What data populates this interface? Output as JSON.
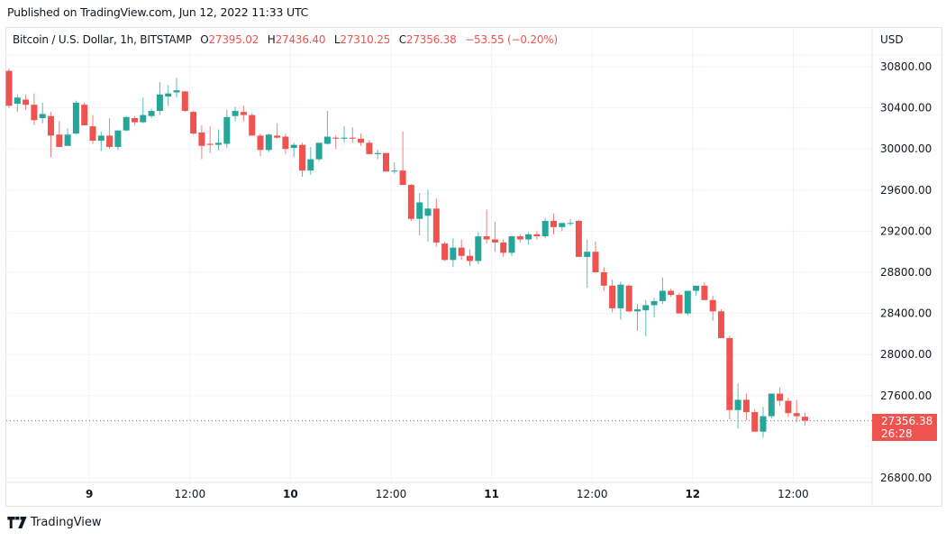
{
  "published": "Published on TradingView.com, Jun 12, 2022 11:33 UTC",
  "legend": {
    "symbol": "Bitcoin / U.S. Dollar, 1h, BITSTAMP",
    "open_key": "O",
    "open": "27395.02",
    "high_key": "H",
    "high": "27436.40",
    "low_key": "L",
    "low": "27310.25",
    "close_key": "C",
    "close": "27356.38",
    "change": "−53.55 (−0.20%)"
  },
  "axis": {
    "currency": "USD"
  },
  "last_price": {
    "value": "27356.38",
    "countdown": "26:28"
  },
  "footer": {
    "brand": "TradingView",
    "logo_icon": "tradingview-logo-icon"
  },
  "colors": {
    "up": "#26a69a",
    "down": "#ef5350",
    "grid": "#f0f3fa",
    "text": "#131722"
  },
  "chart_data": {
    "type": "candlestick",
    "title": "Bitcoin / U.S. Dollar, 1h, BITSTAMP",
    "xlabel": "",
    "ylabel": "USD",
    "ylim": [
      26750,
      30850
    ],
    "grid": true,
    "legend_position": "top-left",
    "y_ticks": [
      30800,
      30400,
      30000,
      29600,
      29200,
      28800,
      28400,
      28000,
      27600,
      26800
    ],
    "y_tick_labels": [
      "30800.00",
      "30400.00",
      "30000.00",
      "29600.00",
      "29200.00",
      "28800.00",
      "28400.00",
      "28000.00",
      "27600.00",
      "26800.00"
    ],
    "x_ticks": [
      {
        "label": "9",
        "index": 9.7,
        "bold": true
      },
      {
        "label": "12:00",
        "index": 21.7,
        "bold": false
      },
      {
        "label": "10",
        "index": 33.7,
        "bold": true
      },
      {
        "label": "12:00",
        "index": 45.7,
        "bold": false
      },
      {
        "label": "11",
        "index": 57.7,
        "bold": true
      },
      {
        "label": "12:00",
        "index": 69.7,
        "bold": false
      },
      {
        "label": "12",
        "index": 81.7,
        "bold": true
      },
      {
        "label": "12:00",
        "index": 93.7,
        "bold": false
      }
    ],
    "current_price": 27356.38,
    "candles": [
      [
        30760,
        30780,
        30400,
        30420
      ],
      [
        30440,
        30530,
        30360,
        30500
      ],
      [
        30480,
        30530,
        30380,
        30430
      ],
      [
        30430,
        30540,
        30230,
        30280
      ],
      [
        30300,
        30450,
        30250,
        30340
      ],
      [
        30320,
        30360,
        29920,
        30130
      ],
      [
        30140,
        30270,
        30020,
        30020
      ],
      [
        30030,
        30200,
        30040,
        30140
      ],
      [
        30150,
        30470,
        30140,
        30450
      ],
      [
        30430,
        30450,
        30230,
        30230
      ],
      [
        30220,
        30330,
        30050,
        30080
      ],
      [
        30080,
        30170,
        29980,
        30130
      ],
      [
        30130,
        30300,
        30000,
        30020
      ],
      [
        30020,
        30180,
        29990,
        30180
      ],
      [
        30180,
        30320,
        30170,
        30310
      ],
      [
        30300,
        30320,
        30230,
        30260
      ],
      [
        30260,
        30500,
        30250,
        30330
      ],
      [
        30320,
        30390,
        30300,
        30370
      ],
      [
        30370,
        30650,
        30330,
        30530
      ],
      [
        30510,
        30620,
        30420,
        30540
      ],
      [
        30550,
        30690,
        30500,
        30570
      ],
      [
        30560,
        30560,
        30360,
        30370
      ],
      [
        30360,
        30370,
        30140,
        30150
      ],
      [
        30160,
        30230,
        29900,
        30030
      ],
      [
        30050,
        30220,
        29960,
        30040
      ],
      [
        30040,
        30190,
        29990,
        30060
      ],
      [
        30050,
        30380,
        30010,
        30310
      ],
      [
        30320,
        30410,
        30270,
        30370
      ],
      [
        30360,
        30420,
        30270,
        30330
      ],
      [
        30330,
        30350,
        30130,
        30130
      ],
      [
        30130,
        30150,
        29930,
        29990
      ],
      [
        29990,
        30150,
        29970,
        30140
      ],
      [
        30130,
        30250,
        30100,
        30110
      ],
      [
        30120,
        30150,
        29950,
        30000
      ],
      [
        30010,
        30060,
        29920,
        30040
      ],
      [
        30040,
        30060,
        29730,
        29790
      ],
      [
        29790,
        30020,
        29750,
        29900
      ],
      [
        29900,
        30010,
        29880,
        30060
      ],
      [
        30050,
        30370,
        30040,
        30120
      ],
      [
        30110,
        30130,
        30000,
        30100
      ],
      [
        30100,
        30220,
        30060,
        30110
      ],
      [
        30110,
        30210,
        30060,
        30100
      ],
      [
        30100,
        30150,
        30030,
        30060
      ],
      [
        30060,
        30090,
        29980,
        29950
      ],
      [
        29950,
        29990,
        29900,
        29960
      ],
      [
        29960,
        29960,
        29790,
        29780
      ],
      [
        29780,
        29870,
        29760,
        29790
      ],
      [
        29790,
        30170,
        29720,
        29650
      ],
      [
        29650,
        29660,
        29300,
        29320
      ],
      [
        29320,
        29570,
        29160,
        29480
      ],
      [
        29350,
        29600,
        29100,
        29420
      ],
      [
        29420,
        29520,
        29050,
        29090
      ],
      [
        29080,
        29100,
        28910,
        28920
      ],
      [
        28920,
        29130,
        28850,
        29040
      ],
      [
        29040,
        29120,
        28920,
        28960
      ],
      [
        28960,
        29020,
        28860,
        28910
      ],
      [
        28910,
        29190,
        28880,
        29150
      ],
      [
        29150,
        29410,
        29080,
        29120
      ],
      [
        29120,
        29290,
        29000,
        29090
      ],
      [
        29090,
        29120,
        28950,
        28990
      ],
      [
        28990,
        29160,
        28960,
        29150
      ],
      [
        29150,
        29170,
        29090,
        29120
      ],
      [
        29120,
        29190,
        29070,
        29170
      ],
      [
        29170,
        29200,
        29120,
        29150
      ],
      [
        29150,
        29330,
        29130,
        29300
      ],
      [
        29300,
        29370,
        29170,
        29240
      ],
      [
        29240,
        29270,
        29200,
        29280
      ],
      [
        29280,
        29320,
        29250,
        29280
      ],
      [
        29300,
        29310,
        28950,
        28950
      ],
      [
        28950,
        29120,
        28650,
        29000
      ],
      [
        29000,
        29100,
        28820,
        28800
      ],
      [
        28800,
        28850,
        28620,
        28670
      ],
      [
        28670,
        28730,
        28410,
        28450
      ],
      [
        28450,
        28710,
        28340,
        28680
      ],
      [
        28670,
        28680,
        28410,
        28420
      ],
      [
        28420,
        28490,
        28230,
        28440
      ],
      [
        28430,
        28530,
        28180,
        28480
      ],
      [
        28480,
        28550,
        28360,
        28520
      ],
      [
        28520,
        28750,
        28490,
        28620
      ],
      [
        28620,
        28640,
        28560,
        28580
      ],
      [
        28580,
        28600,
        28410,
        28400
      ],
      [
        28400,
        28620,
        28380,
        28620
      ],
      [
        28620,
        28650,
        28570,
        28670
      ],
      [
        28670,
        28700,
        28530,
        28530
      ],
      [
        28530,
        28570,
        28330,
        28420
      ],
      [
        28420,
        28440,
        28260,
        28160
      ],
      [
        28160,
        28180,
        27370,
        27460
      ],
      [
        27460,
        27720,
        27280,
        27560
      ],
      [
        27560,
        27620,
        27360,
        27440
      ],
      [
        27440,
        27470,
        27250,
        27250
      ],
      [
        27250,
        27490,
        27190,
        27400
      ],
      [
        27400,
        27600,
        27380,
        27620
      ],
      [
        27620,
        27680,
        27500,
        27550
      ],
      [
        27550,
        27580,
        27390,
        27430
      ],
      [
        27430,
        27560,
        27340,
        27400
      ],
      [
        27395.02,
        27436.4,
        27310.25,
        27356.38
      ]
    ]
  }
}
